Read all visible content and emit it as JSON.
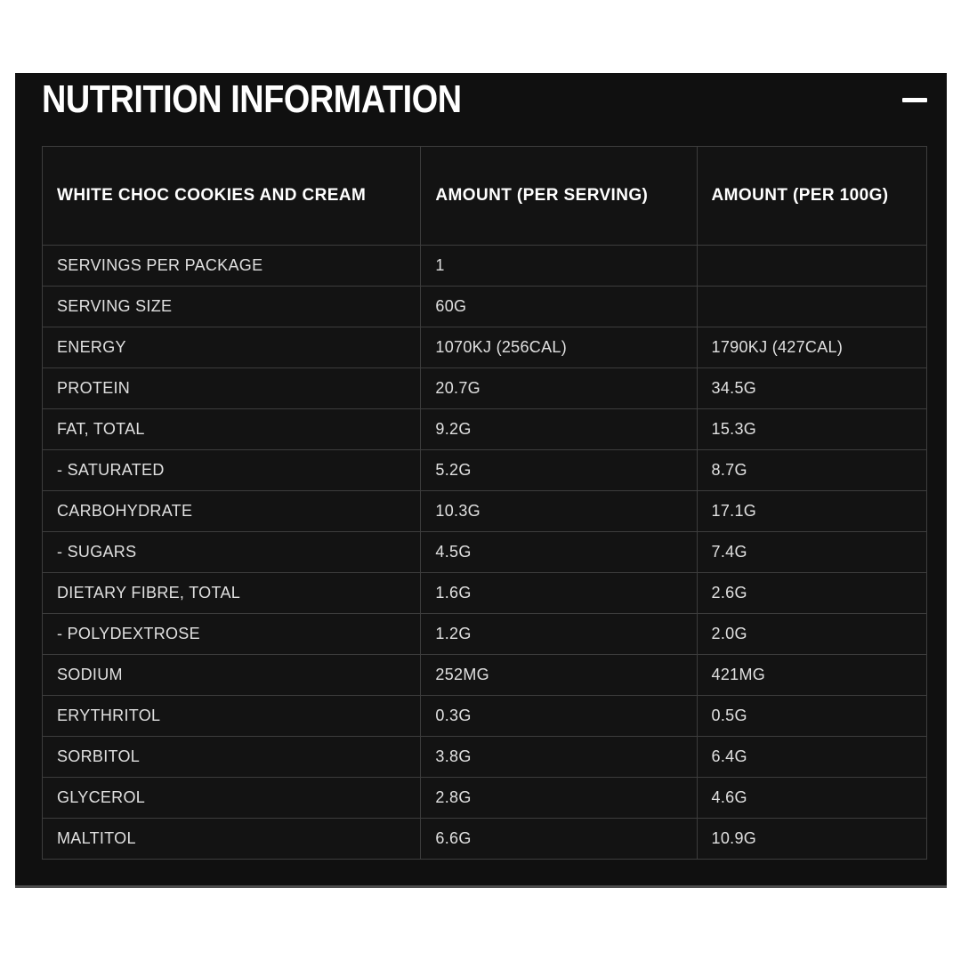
{
  "accordion": {
    "title": "NUTRITION INFORMATION",
    "collapse_icon": "minus-icon",
    "colors": {
      "panel_bg": "#101010",
      "cell_bg": "#131313",
      "border": "#3d3d3d",
      "title_text": "#ffffff",
      "body_text": "#e0e0e0"
    }
  },
  "table": {
    "headers": [
      "WHITE CHOC COOKIES AND CREAM",
      "AMOUNT (PER SERVING)",
      "AMOUNT (PER 100G)"
    ],
    "rows": [
      {
        "label": "SERVINGS PER PACKAGE",
        "per_serving": "1",
        "per_100g": ""
      },
      {
        "label": "SERVING SIZE",
        "per_serving": "60G",
        "per_100g": ""
      },
      {
        "label": "ENERGY",
        "per_serving": "1070KJ (256CAL)",
        "per_100g": "1790KJ (427CAL)"
      },
      {
        "label": "PROTEIN",
        "per_serving": "20.7G",
        "per_100g": "34.5G"
      },
      {
        "label": "FAT, TOTAL",
        "per_serving": "9.2G",
        "per_100g": "15.3G"
      },
      {
        "label": "- SATURATED",
        "per_serving": "5.2G",
        "per_100g": "8.7G"
      },
      {
        "label": "CARBOHYDRATE",
        "per_serving": "10.3G",
        "per_100g": "17.1G"
      },
      {
        "label": "- SUGARS",
        "per_serving": "4.5G",
        "per_100g": "7.4G"
      },
      {
        "label": "DIETARY FIBRE, TOTAL",
        "per_serving": "1.6G",
        "per_100g": "2.6G"
      },
      {
        "label": "- POLYDEXTROSE",
        "per_serving": "1.2G",
        "per_100g": "2.0G"
      },
      {
        "label": "SODIUM",
        "per_serving": "252MG",
        "per_100g": "421MG"
      },
      {
        "label": "ERYTHRITOL",
        "per_serving": "0.3G",
        "per_100g": "0.5G"
      },
      {
        "label": "SORBITOL",
        "per_serving": "3.8G",
        "per_100g": "6.4G"
      },
      {
        "label": "GLYCEROL",
        "per_serving": "2.8G",
        "per_100g": "4.6G"
      },
      {
        "label": "MALTITOL",
        "per_serving": "6.6G",
        "per_100g": "10.9G"
      }
    ]
  }
}
